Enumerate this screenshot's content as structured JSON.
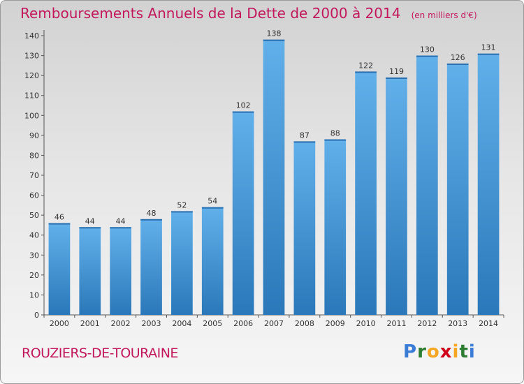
{
  "title": "Remboursements Annuels de la Dette de 2000 à 2014",
  "unit": "(en milliers d'€)",
  "commune": "ROUZIERS-DE-TOURAINE",
  "logo": {
    "text": "Proxiti",
    "letters": [
      "P",
      "r",
      "o",
      "x",
      "i",
      "t",
      "i"
    ],
    "colors": [
      "#3a7bd5",
      "#2e7d32",
      "#f5a623",
      "#d0021b",
      "#f5a623",
      "#2e7d32",
      "#3a7bd5"
    ]
  },
  "colors": {
    "bar_top": "#62b0ea",
    "bar_bottom": "#2a78b9",
    "title": "#c2185b"
  },
  "chart_data": {
    "type": "bar",
    "categories": [
      "2000",
      "2001",
      "2002",
      "2003",
      "2004",
      "2005",
      "2006",
      "2007",
      "2008",
      "2009",
      "2010",
      "2011",
      "2012",
      "2013",
      "2014"
    ],
    "values": [
      46,
      44,
      44,
      48,
      52,
      54,
      102,
      138,
      87,
      88,
      122,
      119,
      130,
      126,
      131
    ],
    "ylim": [
      0,
      140
    ],
    "yticks": [
      0,
      10,
      20,
      30,
      40,
      50,
      60,
      70,
      80,
      90,
      100,
      110,
      120,
      130,
      140
    ],
    "grid": false,
    "data_labels": true
  }
}
